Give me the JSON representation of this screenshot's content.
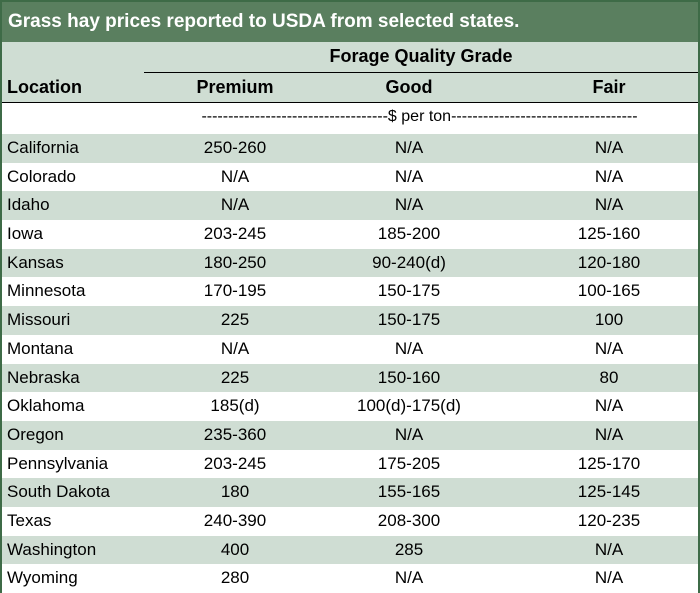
{
  "title": "Grass hay prices reported to USDA from selected states.",
  "header": {
    "group_label": "Forage Quality Grade",
    "location_label": "Location",
    "columns": [
      "Premium",
      "Good",
      "Fair"
    ]
  },
  "unit_line": "-----------------------------------$ per ton-----------------------------------",
  "rows": [
    {
      "location": "California",
      "premium": "250-260",
      "good": "N/A",
      "fair": "N/A"
    },
    {
      "location": "Colorado",
      "premium": "N/A",
      "good": "N/A",
      "fair": "N/A"
    },
    {
      "location": "Idaho",
      "premium": "N/A",
      "good": "N/A",
      "fair": "N/A"
    },
    {
      "location": "Iowa",
      "premium": "203-245",
      "good": "185-200",
      "fair": "125-160"
    },
    {
      "location": "Kansas",
      "premium": "180-250",
      "good": "90-240(d)",
      "fair": "120-180"
    },
    {
      "location": "Minnesota",
      "premium": "170-195",
      "good": "150-175",
      "fair": "100-165"
    },
    {
      "location": "Missouri",
      "premium": "225",
      "good": "150-175",
      "fair": "100"
    },
    {
      "location": "Montana",
      "premium": "N/A",
      "good": "N/A",
      "fair": "N/A"
    },
    {
      "location": "Nebraska",
      "premium": "225",
      "good": "150-160",
      "fair": "80"
    },
    {
      "location": "Oklahoma",
      "premium": "185(d)",
      "good": "100(d)-175(d)",
      "fair": "N/A"
    },
    {
      "location": "Oregon",
      "premium": "235-360",
      "good": "N/A",
      "fair": "N/A"
    },
    {
      "location": "Pennsylvania",
      "premium": "203-245",
      "good": "175-205",
      "fair": "125-170"
    },
    {
      "location": "South Dakota",
      "premium": "180",
      "good": "155-165",
      "fair": "125-145"
    },
    {
      "location": "Texas",
      "premium": "240-390",
      "good": "208-300",
      "fair": "120-235"
    },
    {
      "location": "Washington",
      "premium": "400",
      "good": "285",
      "fair": "N/A"
    },
    {
      "location": "Wyoming",
      "premium": "280",
      "good": "N/A",
      "fair": "N/A"
    }
  ],
  "colors": {
    "title_bg": "#5a7f5f",
    "band": "#cfddd3",
    "border": "#3e6b47"
  }
}
